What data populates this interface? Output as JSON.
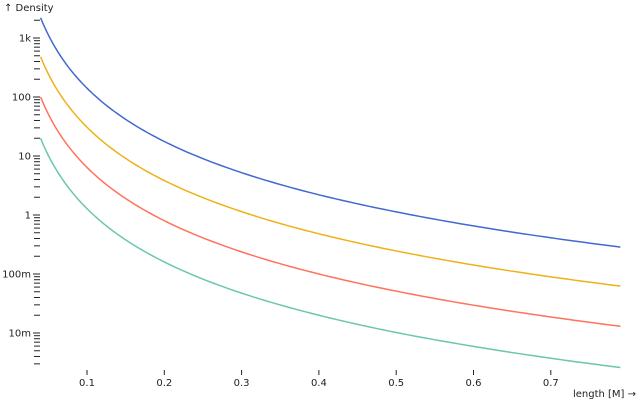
{
  "chart_data": {
    "type": "line",
    "ylabel": "↑ Density",
    "xlabel": "length [M] →",
    "yscale": "log",
    "xlim": [
      0.04,
      0.79
    ],
    "ylim": [
      0.002,
      3000
    ],
    "grid": false,
    "x_ticks": [
      0.1,
      0.2,
      0.3,
      0.4,
      0.5,
      0.6,
      0.7
    ],
    "x_tick_labels": [
      "0.1",
      "0.2",
      "0.3",
      "0.4",
      "0.5",
      "0.6",
      "0.7"
    ],
    "y_ticks": [
      1000,
      100,
      10,
      1,
      0.1,
      0.01
    ],
    "y_tick_labels": [
      "1k",
      "100",
      "10",
      "1",
      "100m",
      "10m"
    ],
    "x": [
      0.04,
      0.05,
      0.06,
      0.08,
      0.1,
      0.15,
      0.2,
      0.3,
      0.4,
      0.5,
      0.6,
      0.7,
      0.79
    ],
    "series": [
      {
        "color": "#4269d0",
        "values": [
          2203,
          1128,
          653,
          275,
          141,
          41.8,
          17.6,
          5.22,
          2.2,
          1.13,
          0.653,
          0.411,
          0.286
        ]
      },
      {
        "color": "#efb118",
        "values": [
          480,
          246,
          142,
          60,
          30.7,
          9.1,
          3.84,
          1.14,
          0.48,
          0.246,
          0.142,
          0.0895,
          0.0623
        ]
      },
      {
        "color": "#ff725c",
        "values": [
          100,
          51.2,
          29.6,
          12.5,
          6.4,
          1.9,
          0.8,
          0.237,
          0.1,
          0.0512,
          0.0296,
          0.0187,
          0.013
        ]
      },
      {
        "color": "#6cc5b0",
        "values": [
          20,
          10.2,
          5.93,
          2.5,
          1.28,
          0.379,
          0.16,
          0.0474,
          0.02,
          0.0102,
          0.00593,
          0.00373,
          0.0026
        ]
      }
    ]
  }
}
